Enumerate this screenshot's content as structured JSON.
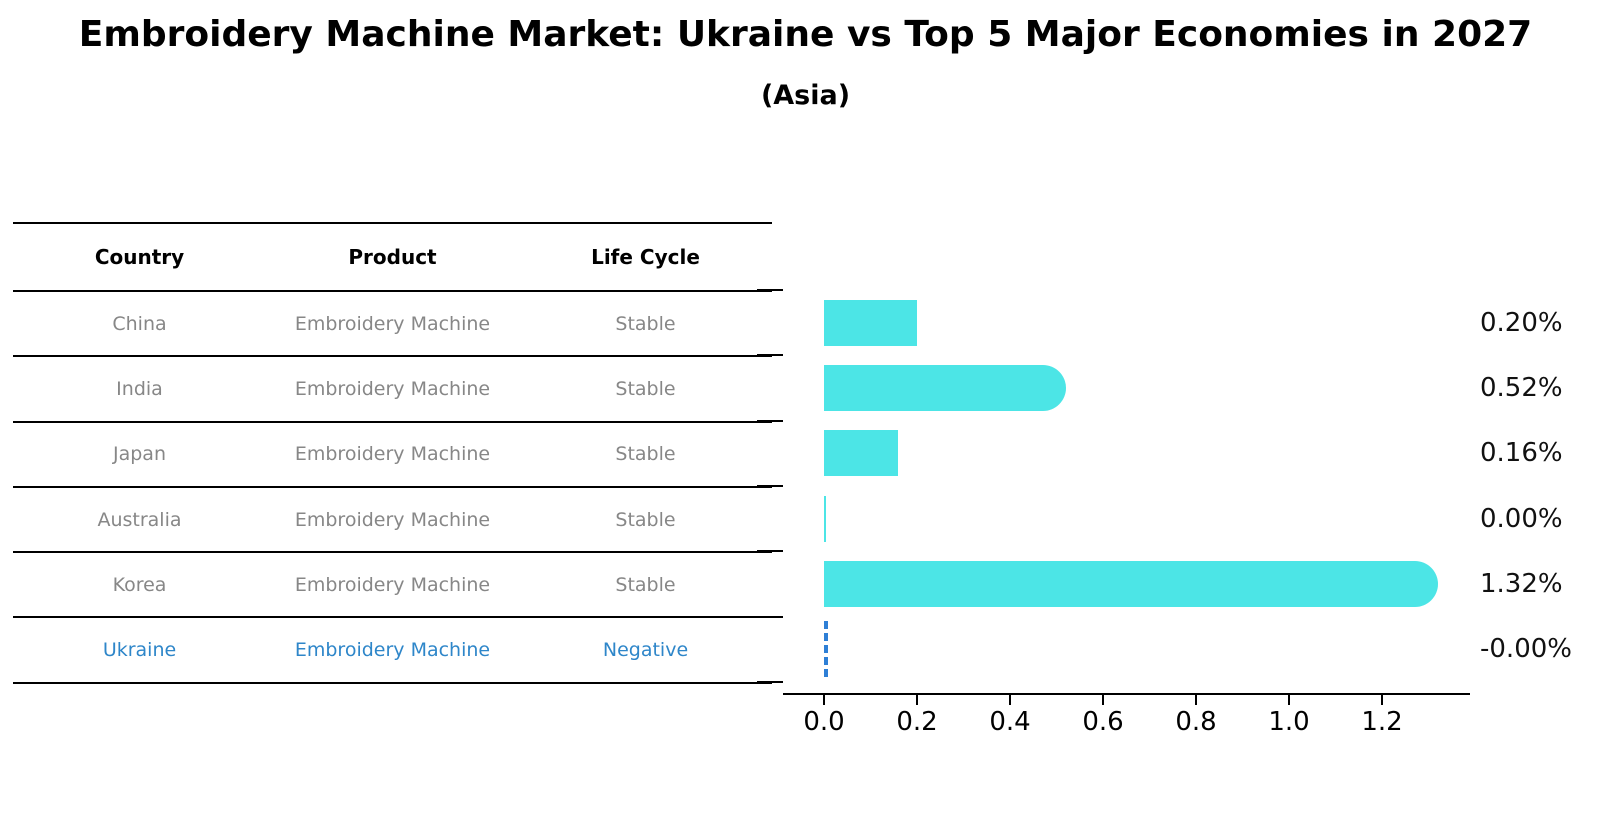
{
  "header": {
    "title": "Embroidery Machine Market: Ukraine vs Top 5 Major Economies in 2027",
    "subtitle": "(Asia)"
  },
  "table": {
    "columns": [
      "Country",
      "Product",
      "Life Cycle"
    ],
    "rows": [
      {
        "country": "China",
        "product": "Embroidery Machine",
        "life_cycle": "Stable",
        "highlight": false
      },
      {
        "country": "India",
        "product": "Embroidery Machine",
        "life_cycle": "Stable",
        "highlight": false
      },
      {
        "country": "Japan",
        "product": "Embroidery Machine",
        "life_cycle": "Stable",
        "highlight": false
      },
      {
        "country": "Australia",
        "product": "Embroidery Machine",
        "life_cycle": "Stable",
        "highlight": false
      },
      {
        "country": "Korea",
        "product": "Embroidery Machine",
        "life_cycle": "Stable",
        "highlight": false
      },
      {
        "country": "Ukraine",
        "product": "Embroidery Machine",
        "life_cycle": "Negative",
        "highlight": true
      }
    ]
  },
  "chart_data": {
    "type": "bar",
    "orientation": "horizontal",
    "title": "Embroidery Machine Market: Ukraine vs Top 5 Major Economies in 2027 (Asia)",
    "categories": [
      "China",
      "India",
      "Japan",
      "Australia",
      "Korea",
      "Ukraine"
    ],
    "values": [
      0.2,
      0.52,
      0.16,
      0.0,
      1.32,
      -0.0
    ],
    "value_labels": [
      "0.20%",
      "0.52%",
      "0.16%",
      "0.00%",
      "1.32%",
      "-0.00%"
    ],
    "highlight_index": 5,
    "highlight_marker": "dashed-vertical-line",
    "x_ticks": [
      0.0,
      0.2,
      0.4,
      0.6,
      0.8,
      1.0,
      1.2
    ],
    "x_tick_labels": [
      "0.0",
      "0.2",
      "0.4",
      "0.6",
      "0.8",
      "1.0",
      "1.2"
    ],
    "xlim": [
      0.0,
      1.39
    ],
    "grid": false,
    "legend": "none",
    "xlabel": "",
    "ylabel": "",
    "bar_color": "#4ce5e6",
    "highlight_color": "#2e7fd6"
  },
  "colors": {
    "title": "#000000",
    "table_text": "#878787",
    "table_highlight_text": "#2e86c9",
    "axis": "#000000",
    "value_label": "#111111"
  }
}
